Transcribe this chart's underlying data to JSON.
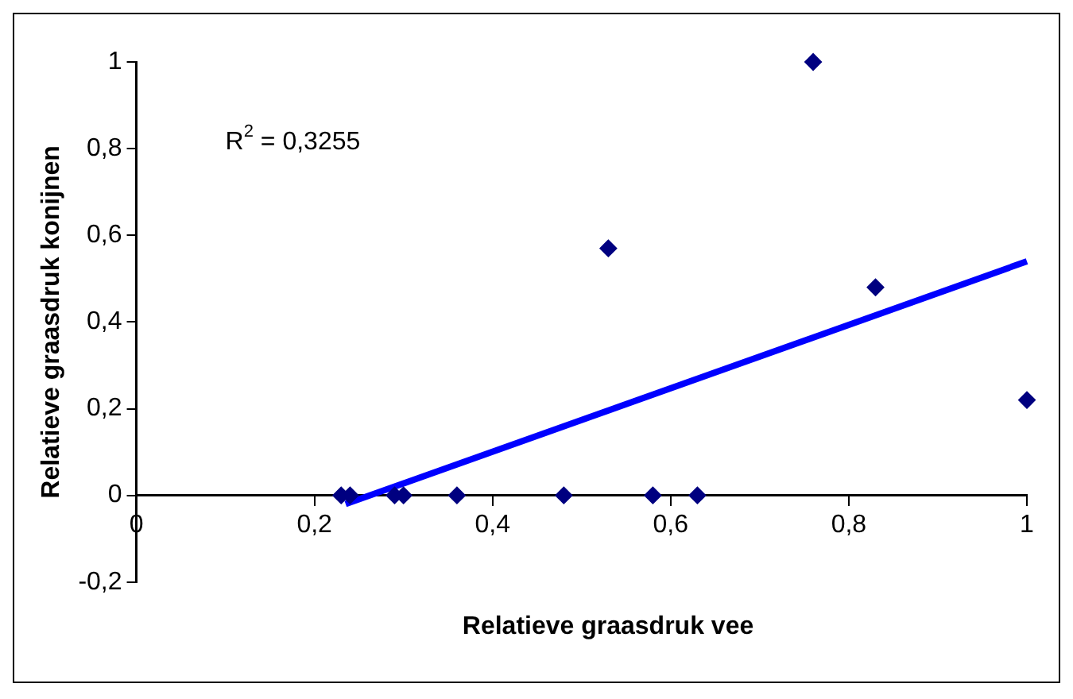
{
  "chart_data": {
    "type": "scatter",
    "xlabel": "Relatieve graasdruk vee",
    "ylabel": "Relatieve graasdruk konijnen",
    "xlim": [
      0,
      1
    ],
    "ylim": [
      -0.2,
      1
    ],
    "xticks": [
      0,
      {
        "value": 0.2,
        "label": "0,2"
      },
      {
        "value": 0.4,
        "label": "0,4"
      },
      {
        "value": 0.6,
        "label": "0,6"
      },
      {
        "value": 0.8,
        "label": "0,8"
      },
      1
    ],
    "yticks": [
      {
        "value": -0.2,
        "label": "-0,2"
      },
      0,
      {
        "value": 0.2,
        "label": "0,2"
      },
      {
        "value": 0.4,
        "label": "0,4"
      },
      {
        "value": 0.6,
        "label": "0,6"
      },
      {
        "value": 0.8,
        "label": "0,8"
      },
      1
    ],
    "grid": false,
    "legend": false,
    "annotations": [
      "R$^{2}$ = 0,3255"
    ],
    "series": [
      {
        "type": "scatter",
        "marker": "diamond",
        "color": "#000080",
        "x": [
          0.23,
          0.24,
          0.29,
          0.3,
          0.36,
          0.48,
          0.58,
          0.63,
          0.53,
          0.76,
          0.83,
          1.0
        ],
        "values": [
          0,
          0,
          0,
          0,
          0,
          0,
          0,
          0,
          0.57,
          1,
          0.48,
          0.22
        ]
      },
      {
        "type": "line",
        "marker": "none",
        "color": "#0000ff",
        "x": [
          0.235,
          1
        ],
        "values": [
          -0.02,
          0.54
        ]
      }
    ]
  }
}
